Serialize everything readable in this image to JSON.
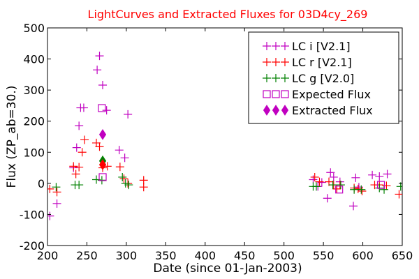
{
  "chart_data": {
    "type": "scatter",
    "title": "LightCurves and Extracted Fluxes for 03D4cy_269",
    "xlabel": "Date (since 01-Jan-2003)",
    "ylabel": "Flux (ZP_ab=30.)",
    "xlim": [
      200,
      650
    ],
    "ylim": [
      -200,
      500
    ],
    "x_ticks": [
      200,
      250,
      300,
      350,
      400,
      450,
      500,
      550,
      600,
      650
    ],
    "y_ticks": [
      -200,
      -100,
      0,
      100,
      200,
      300,
      400,
      500
    ],
    "grid": false,
    "legend_position": "top-right",
    "series": [
      {
        "name": "LC i [V2.1]",
        "marker": "plus",
        "color": "#c000c0",
        "points": [
          [
            203,
            -105
          ],
          [
            212,
            -65
          ],
          [
            233,
            50
          ],
          [
            237,
            115
          ],
          [
            240,
            185
          ],
          [
            242,
            243
          ],
          [
            246,
            243
          ],
          [
            263,
            365
          ],
          [
            266,
            410
          ],
          [
            270,
            316
          ],
          [
            275,
            235
          ],
          [
            291,
            107
          ],
          [
            298,
            82
          ],
          [
            302,
            222
          ],
          [
            537,
            12
          ],
          [
            543,
            -10
          ],
          [
            548,
            3
          ],
          [
            555,
            -48
          ],
          [
            559,
            35
          ],
          [
            563,
            20
          ],
          [
            571,
            5
          ],
          [
            588,
            -73
          ],
          [
            591,
            18
          ],
          [
            595,
            -12
          ],
          [
            612,
            27
          ],
          [
            621,
            22
          ],
          [
            631,
            30
          ]
        ]
      },
      {
        "name": "LC r [V2.1]",
        "marker": "plus",
        "color": "#ff0000",
        "points": [
          [
            203,
            -18
          ],
          [
            212,
            -28
          ],
          [
            233,
            55
          ],
          [
            236,
            30
          ],
          [
            240,
            52
          ],
          [
            244,
            100
          ],
          [
            247,
            140
          ],
          [
            262,
            130
          ],
          [
            266,
            118
          ],
          [
            270,
            50
          ],
          [
            276,
            55
          ],
          [
            292,
            53
          ],
          [
            297,
            15
          ],
          [
            302,
            0
          ],
          [
            322,
            10
          ],
          [
            322,
            -12
          ],
          [
            539,
            20
          ],
          [
            545,
            5
          ],
          [
            557,
            5
          ],
          [
            563,
            -5
          ],
          [
            567,
            -18
          ],
          [
            571,
            -5
          ],
          [
            589,
            -15
          ],
          [
            594,
            -18
          ],
          [
            599,
            -25
          ],
          [
            615,
            -5
          ],
          [
            621,
            -5
          ],
          [
            630,
            -8
          ],
          [
            646,
            -35
          ]
        ]
      },
      {
        "name": "LC g [V2.0]",
        "marker": "plus",
        "color": "#008000",
        "points": [
          [
            211,
            -12
          ],
          [
            235,
            -5
          ],
          [
            240,
            -5
          ],
          [
            262,
            12
          ],
          [
            269,
            10
          ],
          [
            295,
            20
          ],
          [
            299,
            0
          ],
          [
            303,
            -5
          ],
          [
            537,
            -10
          ],
          [
            541,
            -10
          ],
          [
            562,
            -5
          ],
          [
            572,
            -5
          ],
          [
            589,
            -20
          ],
          [
            598,
            -20
          ],
          [
            621,
            -15
          ],
          [
            627,
            -20
          ],
          [
            648,
            -10
          ]
        ]
      },
      {
        "name": "Expected Flux",
        "marker": "square",
        "color": "#c000c0",
        "points": [
          [
            269,
            242
          ],
          [
            270,
            20
          ],
          [
            570,
            -20
          ],
          [
            623,
            -5
          ]
        ]
      },
      {
        "name": "Extracted Flux",
        "marker": "diamond",
        "color": "#c000c0",
        "points": [
          [
            270,
            157
          ]
        ]
      },
      {
        "marker": "diamond",
        "color": "#008000",
        "points": [
          [
            270,
            72
          ]
        ]
      },
      {
        "marker": "diamond",
        "color": "#ff0000",
        "points": [
          [
            270,
            60
          ]
        ]
      }
    ]
  }
}
